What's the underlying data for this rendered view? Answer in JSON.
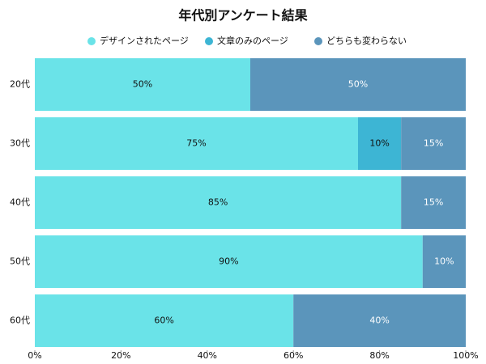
{
  "chart_data": {
    "type": "stacked-barh",
    "title": "年代別アンケート結果",
    "categories": [
      "20代",
      "30代",
      "40代",
      "50代",
      "60代"
    ],
    "series": [
      {
        "name": "デザインされたページ",
        "color": "#6ae3e8",
        "label_color": "#111111",
        "values": [
          50,
          75,
          85,
          90,
          60
        ],
        "value_labels": [
          "50%",
          "75%",
          "85%",
          "90%",
          "60%"
        ]
      },
      {
        "name": "文章のみのページ",
        "color": "#3db5d4",
        "label_color": "#111111",
        "values": [
          0,
          10,
          0,
          0,
          0
        ],
        "value_labels": [
          null,
          "10%",
          null,
          null,
          null
        ]
      },
      {
        "name": "どちらも変わらない",
        "color": "#5b95bb",
        "label_color": "#ffffff",
        "values": [
          50,
          15,
          15,
          10,
          40
        ],
        "value_labels": [
          "50%",
          "15%",
          "15%",
          "10%",
          "40%"
        ]
      }
    ],
    "xlim": [
      0,
      100
    ],
    "xticks": [
      {
        "value": 0,
        "label": "0%"
      },
      {
        "value": 20,
        "label": "20%"
      },
      {
        "value": 40,
        "label": "40%"
      },
      {
        "value": 60,
        "label": "60%"
      },
      {
        "value": 80,
        "label": "80%"
      },
      {
        "value": 100,
        "label": "100%"
      }
    ],
    "legend": "top"
  }
}
